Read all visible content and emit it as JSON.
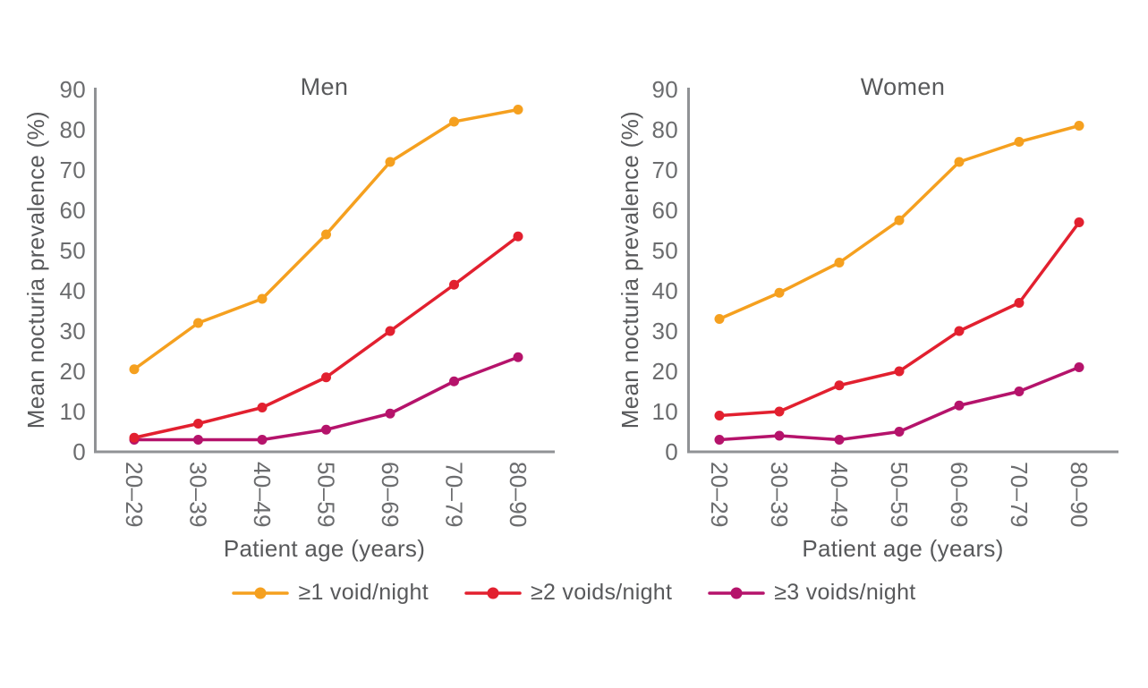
{
  "figure": {
    "background_color": "#ffffff",
    "text_color": "#58595b",
    "tick_text_color": "#6b6c6e",
    "axis_line_color": "#909295"
  },
  "legend": {
    "position": "bottom-center",
    "items": [
      {
        "label": "≥1 void/night",
        "color": "#F5A01F",
        "marker": "line-dot"
      },
      {
        "label": "≥2 voids/night",
        "color": "#E2202F",
        "marker": "line-dot"
      },
      {
        "label": "≥3 voids/night",
        "color": "#B5136B",
        "marker": "line-dot"
      }
    ]
  },
  "chart_data": [
    {
      "type": "line",
      "title": "Men",
      "xlabel": "Patient age (years)",
      "ylabel": "Mean nocturia prevalence (%)",
      "ylim": [
        0,
        90
      ],
      "yticks": [
        0,
        10,
        20,
        30,
        40,
        50,
        60,
        70,
        80,
        90
      ],
      "grid": false,
      "categories": [
        "20–29",
        "30–39",
        "40–49",
        "50–59",
        "60–69",
        "70–79",
        "80–90"
      ],
      "series": [
        {
          "name": "≥1 void/night",
          "color": "#F5A01F",
          "values": [
            20.5,
            32,
            38,
            54,
            72,
            82,
            85
          ]
        },
        {
          "name": "≥2 voids/night",
          "color": "#E2202F",
          "values": [
            3.5,
            7,
            11,
            18.5,
            30,
            41.5,
            53.5
          ]
        },
        {
          "name": "≥3 voids/night",
          "color": "#B5136B",
          "values": [
            3,
            3,
            3,
            5.5,
            9.5,
            17.5,
            23.5
          ]
        }
      ]
    },
    {
      "type": "line",
      "title": "Women",
      "xlabel": "Patient age (years)",
      "ylabel": "Mean nocturia prevalence (%)",
      "ylim": [
        0,
        90
      ],
      "yticks": [
        0,
        10,
        20,
        30,
        40,
        50,
        60,
        70,
        80,
        90
      ],
      "grid": false,
      "categories": [
        "20–29",
        "30–39",
        "40–49",
        "50–59",
        "60–69",
        "70–79",
        "80–90"
      ],
      "series": [
        {
          "name": "≥1 void/night",
          "color": "#F5A01F",
          "values": [
            33,
            39.5,
            47,
            57.5,
            72,
            77,
            81
          ]
        },
        {
          "name": "≥2 voids/night",
          "color": "#E2202F",
          "values": [
            9,
            10,
            16.5,
            20,
            30,
            37,
            57
          ]
        },
        {
          "name": "≥3 voids/night",
          "color": "#B5136B",
          "values": [
            3,
            4,
            3,
            5,
            11.5,
            15,
            21
          ]
        }
      ]
    }
  ]
}
